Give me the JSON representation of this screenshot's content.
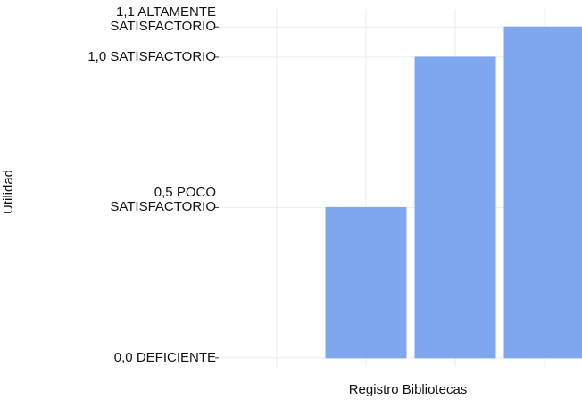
{
  "chart_data": {
    "type": "bar",
    "x_label": "Registro Bibliotecas",
    "y_label": "Utilidad",
    "categories": [
      null,
      null,
      null,
      null
    ],
    "values": [
      0,
      0.5,
      1.0,
      1.1
    ],
    "color": "#7fa7ef",
    "ylim": [
      -0.03,
      1.16
    ],
    "yticks": [
      {
        "value": 0,
        "label": "0,0 DEFICIENTE"
      },
      {
        "value": 0.5,
        "label": "0,5 POCO\nSATISFACTORIO"
      },
      {
        "value": 1.0,
        "label": "1,0 SATISFACTORIO"
      },
      {
        "value": 1.1,
        "label": "1,1 ALTAMENTE\nSATISFACTORIO"
      }
    ],
    "grid": true
  }
}
